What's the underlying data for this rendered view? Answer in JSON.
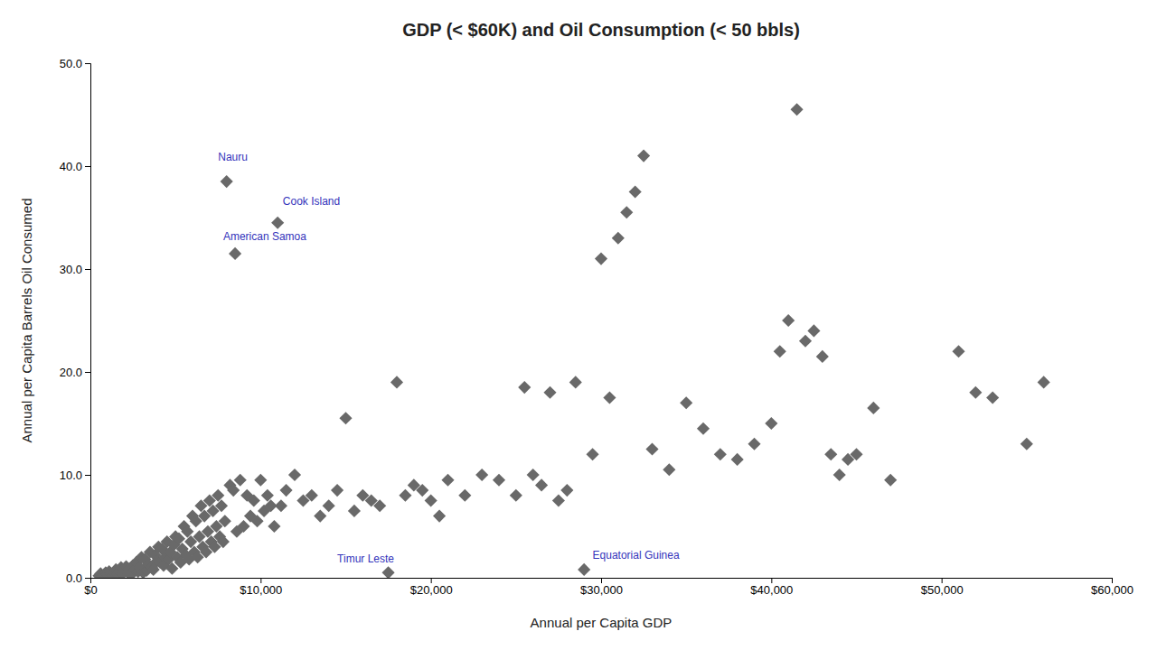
{
  "chart_data": {
    "type": "scatter",
    "title": "GDP (< $60K) and Oil Consumption (< 50 bbls)",
    "xlabel": "Annual per Capita GDP",
    "ylabel": "Annual per Capita Barrels Oil Consumed",
    "xlim": [
      0,
      60000
    ],
    "ylim": [
      0,
      50
    ],
    "xticks": [
      {
        "value": 0,
        "label": "$0"
      },
      {
        "value": 10000,
        "label": "$10,000"
      },
      {
        "value": 20000,
        "label": "$20,000"
      },
      {
        "value": 30000,
        "label": "$30,000"
      },
      {
        "value": 40000,
        "label": "$40,000"
      },
      {
        "value": 50000,
        "label": "$50,000"
      },
      {
        "value": 60000,
        "label": "$60,000"
      }
    ],
    "yticks": [
      {
        "value": 0.0,
        "label": "0.0"
      },
      {
        "value": 10.0,
        "label": "10.0"
      },
      {
        "value": 20.0,
        "label": "20.0"
      },
      {
        "value": 30.0,
        "label": "30.0"
      },
      {
        "value": 40.0,
        "label": "40.0"
      },
      {
        "value": 50.0,
        "label": "50.0"
      }
    ],
    "grid": false,
    "color": "#696969",
    "marker": "diamond",
    "annotations": [
      {
        "text": "Nauru",
        "x": 7500,
        "y": 40.5,
        "color": "#3333bb"
      },
      {
        "text": "Cook Island",
        "x": 11300,
        "y": 36.2,
        "color": "#3333bb"
      },
      {
        "text": "American Samoa",
        "x": 7800,
        "y": 32.8,
        "color": "#3333bb"
      },
      {
        "text": "Timur Leste",
        "x": 14500,
        "y": 1.5,
        "color": "#3333bb"
      },
      {
        "text": "Equatorial Guinea",
        "x": 29500,
        "y": 1.8,
        "color": "#3333bb"
      }
    ],
    "x": [
      500,
      600,
      700,
      800,
      900,
      1000,
      1100,
      1200,
      1300,
      1400,
      1500,
      1600,
      1700,
      1800,
      1900,
      2000,
      2100,
      2200,
      2300,
      2400,
      2500,
      2600,
      2700,
      2800,
      2900,
      3000,
      3100,
      3200,
      3300,
      3400,
      3500,
      3600,
      3700,
      3800,
      3900,
      4000,
      4100,
      4200,
      4300,
      4400,
      4500,
      4600,
      4700,
      4800,
      4900,
      5000,
      5100,
      5200,
      5300,
      5400,
      5500,
      5600,
      5700,
      5800,
      5900,
      6000,
      6100,
      6200,
      6300,
      6400,
      6500,
      6600,
      6700,
      6800,
      6900,
      7000,
      7100,
      7200,
      7300,
      7400,
      7500,
      7600,
      7700,
      7800,
      7900,
      8000,
      8200,
      8400,
      8500,
      8600,
      8800,
      9000,
      9200,
      9400,
      9600,
      9800,
      10000,
      10200,
      10400,
      10600,
      10800,
      11000,
      11200,
      11500,
      12000,
      12500,
      13000,
      13500,
      14000,
      14500,
      15000,
      15500,
      16000,
      16500,
      17000,
      17500,
      18000,
      18500,
      19000,
      19500,
      20000,
      20500,
      21000,
      22000,
      23000,
      24000,
      25000,
      25500,
      26000,
      26500,
      27000,
      27500,
      28000,
      28500,
      29000,
      29500,
      30000,
      30500,
      31000,
      31500,
      32000,
      32500,
      33000,
      34000,
      35000,
      36000,
      37000,
      38000,
      39000,
      40000,
      40500,
      41000,
      41500,
      42000,
      42500,
      43000,
      43500,
      44000,
      44500,
      45000,
      46000,
      47000,
      51000,
      52000,
      53000,
      55000,
      56000
    ],
    "values": [
      0.2,
      0.4,
      0.1,
      0.3,
      0.5,
      0.3,
      0.6,
      0.4,
      0.2,
      0.5,
      0.8,
      0.3,
      0.6,
      1.0,
      0.4,
      0.7,
      1.1,
      0.5,
      0.9,
      0.3,
      1.2,
      0.8,
      1.5,
      0.6,
      1.0,
      2.0,
      0.5,
      1.8,
      0.7,
      1.3,
      2.5,
      1.0,
      0.8,
      2.2,
      1.6,
      3.0,
      1.5,
      2.8,
      1.2,
      2.0,
      3.5,
      1.8,
      2.5,
      0.9,
      3.2,
      4.0,
      2.0,
      3.8,
      1.5,
      2.8,
      5.0,
      2.2,
      4.5,
      1.8,
      3.5,
      6.0,
      2.5,
      5.5,
      2.0,
      4.0,
      7.0,
      3.0,
      6.0,
      2.5,
      4.5,
      7.5,
      3.5,
      6.5,
      3.0,
      5.0,
      8.0,
      4.0,
      7.0,
      3.5,
      5.5,
      38.5,
      9.0,
      8.5,
      31.5,
      4.5,
      9.5,
      5.0,
      8.0,
      6.0,
      7.5,
      5.5,
      9.5,
      6.5,
      8.0,
      7.0,
      5.0,
      34.5,
      7.0,
      8.5,
      10.0,
      7.5,
      8.0,
      6.0,
      7.0,
      8.5,
      15.5,
      6.5,
      8.0,
      7.5,
      7.0,
      0.5,
      19.0,
      8.0,
      9.0,
      8.5,
      7.5,
      6.0,
      9.5,
      8.0,
      10.0,
      9.5,
      8.0,
      18.5,
      10.0,
      9.0,
      18.0,
      7.5,
      8.5,
      19.0,
      0.8,
      12.0,
      31.0,
      17.5,
      33.0,
      35.5,
      37.5,
      41.0,
      12.5,
      10.5,
      17.0,
      14.5,
      12.0,
      11.5,
      13.0,
      15.0,
      22.0,
      25.0,
      45.5,
      23.0,
      24.0,
      21.5,
      12.0,
      10.0,
      11.5,
      12.0,
      16.5,
      9.5,
      22.0,
      18.0,
      17.5,
      13.0,
      19.0
    ]
  }
}
